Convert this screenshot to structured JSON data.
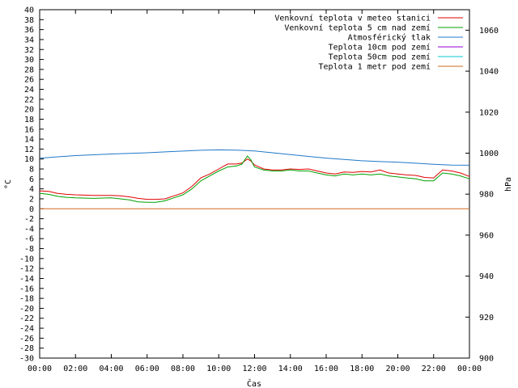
{
  "chart_data": {
    "type": "line",
    "xlabel": "Čas",
    "ylabel": "°C",
    "y2label": "hPa",
    "x_ticks": [
      "00:00",
      "02:00",
      "04:00",
      "06:00",
      "08:00",
      "10:00",
      "12:00",
      "14:00",
      "16:00",
      "18:00",
      "20:00",
      "22:00",
      "00:00"
    ],
    "xlim_hours": [
      0,
      24
    ],
    "ylim": [
      -30,
      40
    ],
    "y_ticks": [
      40,
      38,
      36,
      34,
      32,
      30,
      28,
      26,
      24,
      22,
      20,
      18,
      16,
      14,
      12,
      10,
      8,
      6,
      4,
      2,
      0,
      -2,
      -4,
      -6,
      -8,
      -10,
      -12,
      -14,
      -16,
      -18,
      -20,
      -22,
      -24,
      -26,
      -28,
      -30
    ],
    "y2lim": [
      900,
      1070
    ],
    "y2_ticks": [
      1060,
      1040,
      1020,
      1000,
      980,
      960,
      940,
      920,
      900
    ],
    "grid": false,
    "legend_position": "top-right",
    "series": [
      {
        "name": "Venkovní teplota v meteo stanici",
        "axis": "left",
        "color": "#e00000",
        "x": [
          0,
          0.5,
          1,
          1.5,
          2,
          3,
          4,
          4.5,
          5,
          5.5,
          6,
          6.5,
          7,
          7.5,
          8,
          8.5,
          9,
          9.5,
          10,
          10.5,
          11,
          11.3,
          11.6,
          11.8,
          12,
          12.5,
          13,
          13.5,
          14,
          14.5,
          15,
          15.5,
          16,
          16.5,
          17,
          17.5,
          18,
          18.5,
          19,
          19.5,
          20,
          20.5,
          21,
          21.5,
          22,
          22.5,
          23,
          23.5,
          24
        ],
        "y": [
          3.6,
          3.5,
          3.1,
          2.9,
          2.8,
          2.7,
          2.7,
          2.6,
          2.4,
          2.1,
          1.9,
          1.9,
          2.0,
          2.6,
          3.2,
          4.5,
          6.2,
          7.0,
          8.0,
          9.0,
          9.0,
          9.2,
          10.0,
          9.6,
          8.8,
          8.0,
          7.8,
          7.8,
          8.0,
          7.9,
          8.0,
          7.6,
          7.2,
          7.0,
          7.4,
          7.3,
          7.5,
          7.4,
          7.8,
          7.2,
          7.0,
          6.8,
          6.7,
          6.3,
          6.2,
          7.8,
          7.6,
          7.2,
          6.5
        ]
      },
      {
        "name": "Venkovní teplota 5 cm nad zemí",
        "axis": "left",
        "color": "#00a000",
        "x": [
          0,
          0.5,
          1,
          1.5,
          2,
          3,
          4,
          4.5,
          5,
          5.5,
          6,
          6.5,
          7,
          7.5,
          8,
          8.5,
          9,
          9.5,
          10,
          10.5,
          11,
          11.3,
          11.6,
          11.8,
          12,
          12.5,
          13,
          13.5,
          14,
          14.5,
          15,
          15.5,
          16,
          16.5,
          17,
          17.5,
          18,
          18.5,
          19,
          19.5,
          20,
          20.5,
          21,
          21.5,
          22,
          22.5,
          23,
          23.5,
          24
        ],
        "y": [
          3.1,
          2.9,
          2.5,
          2.3,
          2.2,
          2.1,
          2.2,
          2.0,
          1.8,
          1.4,
          1.3,
          1.3,
          1.6,
          2.2,
          2.8,
          4.0,
          5.6,
          6.6,
          7.6,
          8.4,
          8.6,
          9.0,
          10.6,
          9.8,
          8.4,
          7.8,
          7.6,
          7.6,
          7.8,
          7.6,
          7.6,
          7.2,
          6.8,
          6.6,
          7.0,
          6.8,
          7.0,
          6.8,
          7.0,
          6.6,
          6.4,
          6.2,
          6.0,
          5.6,
          5.6,
          7.2,
          7.0,
          6.6,
          6.0
        ]
      },
      {
        "name": "Atmosférický tlak",
        "axis": "right",
        "color": "#1f78c8",
        "x": [
          0,
          1,
          2,
          3,
          4,
          5,
          6,
          7,
          8,
          9,
          10,
          11,
          12,
          13,
          14,
          15,
          16,
          17,
          18,
          19,
          20,
          21,
          22,
          23,
          24
        ],
        "y": [
          997.5,
          998.2,
          998.8,
          999.2,
          999.6,
          999.9,
          1000.2,
          1000.6,
          1001.0,
          1001.4,
          1001.6,
          1001.5,
          1001.1,
          1000.2,
          999.3,
          998.4,
          997.6,
          996.9,
          996.3,
          995.9,
          995.6,
          995.1,
          994.6,
          994.2,
          994.1
        ]
      },
      {
        "name": "Teplota 10cm pod zemí",
        "axis": "left",
        "color": "#9400d3",
        "x": [],
        "y": []
      },
      {
        "name": "Teplota 50cm pod zemí",
        "axis": "left",
        "color": "#00c8d2",
        "x": [],
        "y": []
      },
      {
        "name": "Teplota 1 metr pod zemí",
        "axis": "left",
        "color": "#d2691e",
        "x": [
          0,
          24
        ],
        "y": [
          0,
          0
        ]
      }
    ]
  }
}
